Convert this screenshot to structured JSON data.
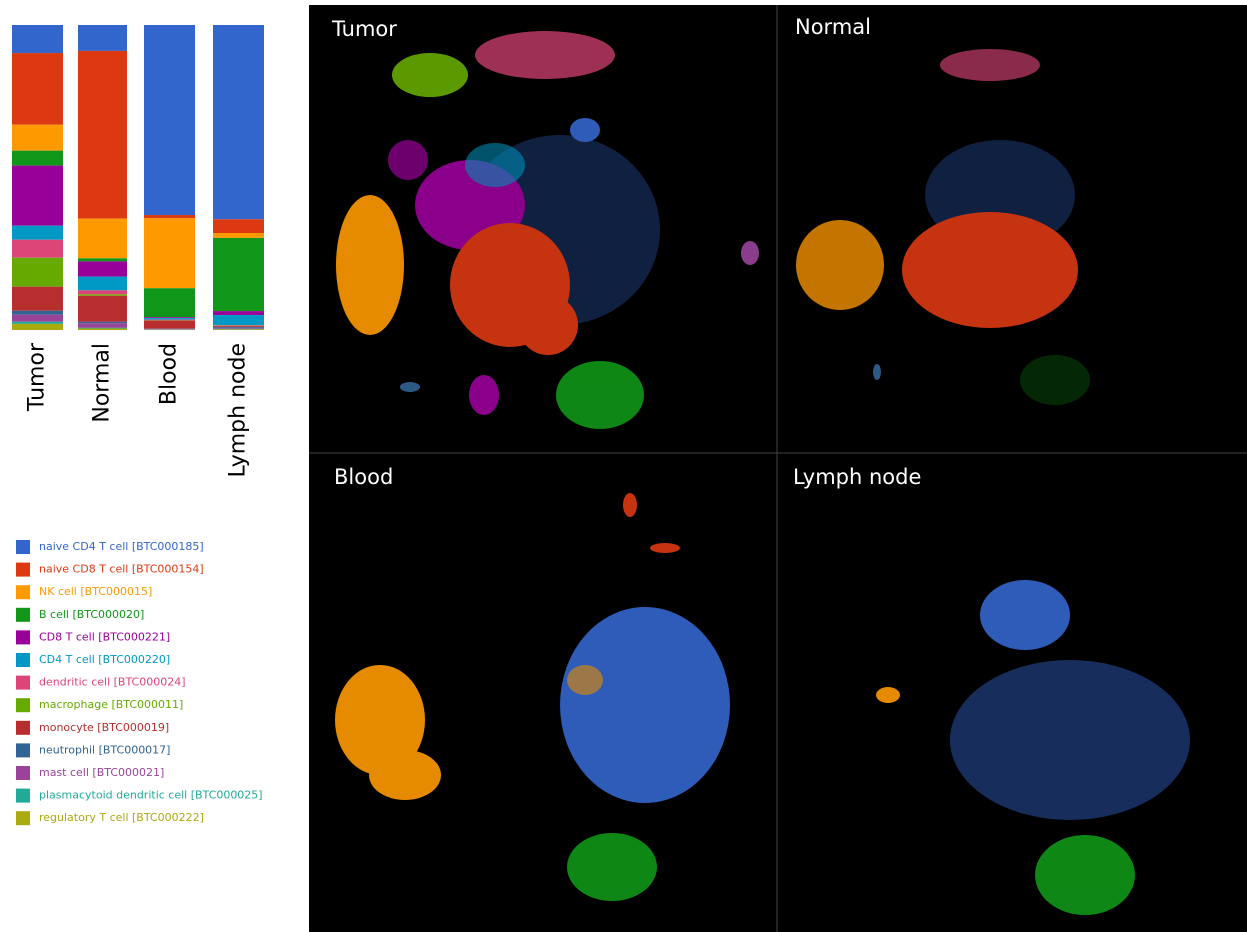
{
  "chart_data": {
    "type": "bar",
    "stacked": true,
    "categories": [
      "Tumor",
      "Normal",
      "Blood",
      "Lymph node"
    ],
    "ylim": [
      0,
      100
    ],
    "series": [
      {
        "name": "naive CD4 T cell [BTC000185]",
        "color": "#3366cc",
        "values": [
          9.2,
          8.5,
          62.3,
          63.7
        ]
      },
      {
        "name": "naive CD8 T cell [BTC000154]",
        "color": "#dc3912",
        "values": [
          23.5,
          55,
          1,
          4.5
        ]
      },
      {
        "name": "NK cell [BTC000015]",
        "color": "#ff9900",
        "values": [
          8.5,
          13,
          23,
          1.6
        ]
      },
      {
        "name": "B cell [BTC000020]",
        "color": "#109618",
        "values": [
          4.9,
          1,
          9.5,
          24
        ]
      },
      {
        "name": "CD8 T cell [BTC000221]",
        "color": "#990099",
        "values": [
          19.7,
          5,
          0.3,
          1.3
        ]
      },
      {
        "name": "CD4 T cell [BTC000220]",
        "color": "#0099c6",
        "values": [
          4.6,
          4.5,
          0.5,
          3.3
        ]
      },
      {
        "name": "dendritic cell [BTC000024]",
        "color": "#dd4477",
        "values": [
          5.9,
          1.3,
          0.2,
          0.2
        ]
      },
      {
        "name": "macrophage [BTC000011]",
        "color": "#66aa00",
        "values": [
          9.5,
          0.5,
          0.1,
          0.1
        ]
      },
      {
        "name": "monocyte [BTC000019]",
        "color": "#b82e2e",
        "values": [
          7.9,
          8.5,
          2.6,
          0.3
        ]
      },
      {
        "name": "neutrophil [BTC000017]",
        "color": "#316395",
        "values": [
          1.3,
          0.5,
          0.1,
          0.3
        ]
      },
      {
        "name": "mast cell [BTC000021]",
        "color": "#994499",
        "values": [
          2.3,
          1.5,
          0.2,
          0.3
        ]
      },
      {
        "name": "plasmacytoid dendritic cell [BTC000025]",
        "color": "#22aa99",
        "values": [
          0.7,
          0.2,
          0.1,
          0.2
        ]
      },
      {
        "name": "regulatory T cell [BTC000222]",
        "color": "#aaaa11",
        "values": [
          2,
          0.5,
          0.1,
          0.2
        ]
      }
    ]
  },
  "umap_panels": [
    "Tumor",
    "Normal",
    "Blood",
    "Lymph node"
  ]
}
